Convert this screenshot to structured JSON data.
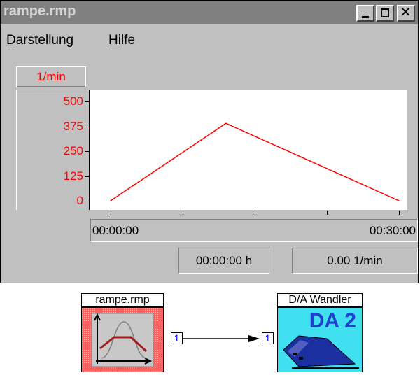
{
  "window": {
    "title": "rampe.rmp",
    "buttons": {
      "minimize": "minimize-icon",
      "maximize": "maximize-icon",
      "close": "close-icon"
    }
  },
  "menu": {
    "items": [
      {
        "label": "Darstellung",
        "accel": "D"
      },
      {
        "label": "Hilfe",
        "accel": "H"
      }
    ]
  },
  "chart_data": {
    "type": "line",
    "unit_label": "1/min",
    "y_ticks": [
      "500",
      "375",
      "250",
      "125",
      "0"
    ],
    "ylim": [
      0,
      500
    ],
    "x_start_label": "00:00:00",
    "x_end_label": "00:30:00",
    "x_minutes": [
      0,
      12,
      30
    ],
    "values": [
      0,
      390,
      0
    ],
    "line_color": "#ff0000",
    "grid": false
  },
  "status": {
    "time": "00:00:00 h",
    "value": "0.00 1/min"
  },
  "blocks": {
    "source": {
      "title": "rampe.rmp",
      "port": "1",
      "icon": "ramp-curve-icon",
      "color": "#ff6060"
    },
    "target": {
      "title": "D/A Wandler",
      "label": "DA 2",
      "port": "1",
      "icon": "da-converter-icon",
      "color": "#40e0f0"
    }
  }
}
